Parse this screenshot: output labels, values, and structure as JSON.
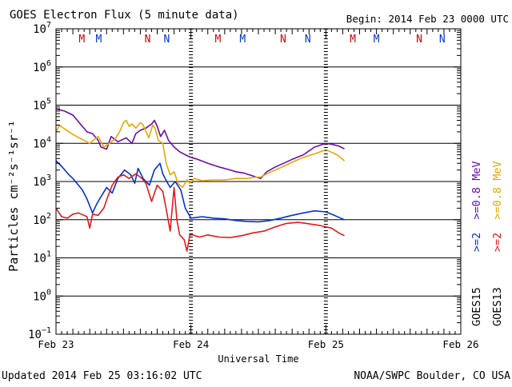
{
  "header": {
    "title": "GOES Electron Flux (5 minute data)",
    "begin": "Begin: 2014 Feb 23 0000 UTC"
  },
  "footer": {
    "updated": "Updated 2014 Feb 25 03:16:02 UTC",
    "credit": "NOAA/SWPC Boulder, CO USA"
  },
  "colors": {
    "goes15_08": "#6a0dad",
    "goes15_2": "#0033cc",
    "goes13_08": "#e8a800",
    "goes13_2": "#e31a1c",
    "marker_M": "#cc0000",
    "marker_N": "#0033cc"
  },
  "chart_data": {
    "type": "line",
    "title": "GOES Electron Flux (5 minute data)",
    "xlabel": "Universal Time",
    "ylabel": "Particles cm⁻²s⁻¹sr⁻¹",
    "y_scale": "log",
    "ylim": [
      0.1,
      10000000
    ],
    "x_unit": "hours since 2014 Feb 23 0000 UTC",
    "xlim": [
      0,
      72
    ],
    "x_ticks": [
      {
        "x": 0,
        "label": "Feb 23"
      },
      {
        "x": 24,
        "label": "Feb 24"
      },
      {
        "x": 48,
        "label": "Feb 25"
      },
      {
        "x": 72,
        "label": "Feb 26"
      }
    ],
    "y_ticks": [
      {
        "exp": -1
      },
      {
        "exp": 0
      },
      {
        "exp": 1
      },
      {
        "exp": 2
      },
      {
        "exp": 3
      },
      {
        "exp": 4
      },
      {
        "exp": 5
      },
      {
        "exp": 6
      },
      {
        "exp": 7
      }
    ],
    "threshold_line": 1000,
    "grid": true,
    "day_markers": [
      24,
      48
    ],
    "local_time_markers": [
      {
        "label": "M",
        "x": 4.6,
        "color": "#cc0000"
      },
      {
        "label": "M",
        "x": 7.6,
        "color": "#0033cc"
      },
      {
        "label": "N",
        "x": 16.3,
        "color": "#cc0000"
      },
      {
        "label": "N",
        "x": 19.7,
        "color": "#0033cc"
      },
      {
        "label": "M",
        "x": 28.8,
        "color": "#cc0000"
      },
      {
        "label": "M",
        "x": 33.2,
        "color": "#0033cc"
      },
      {
        "label": "N",
        "x": 40.4,
        "color": "#cc0000"
      },
      {
        "label": "N",
        "x": 44.8,
        "color": "#0033cc"
      },
      {
        "label": "M",
        "x": 52.8,
        "color": "#cc0000"
      },
      {
        "label": "M",
        "x": 57.0,
        "color": "#0033cc"
      },
      {
        "label": "N",
        "x": 64.6,
        "color": "#cc0000"
      },
      {
        "label": "N",
        "x": 68.7,
        "color": "#0033cc"
      }
    ],
    "legend_right": [
      {
        "text": "GOES15",
        "color": "#000000"
      },
      {
        "text": ">=2",
        "color": "#0033cc"
      },
      {
        "text": ">=0.8",
        "color": "#6a0dad"
      },
      {
        "text": "MeV",
        "color": "#6a0dad"
      },
      {
        "text": "GOES13",
        "color": "#000000"
      },
      {
        "text": ">=2",
        "color": "#e31a1c"
      },
      {
        "text": ">=0.8",
        "color": "#e8a800"
      },
      {
        "text": "MeV",
        "color": "#e8a800"
      }
    ],
    "series": [
      {
        "key": "goes15_08",
        "color": "#6a0dad",
        "points": [
          [
            0,
            80000
          ],
          [
            1.5,
            70000
          ],
          [
            3,
            55000
          ],
          [
            4.5,
            30000
          ],
          [
            5.5,
            20000
          ],
          [
            6.5,
            18000
          ],
          [
            7.5,
            12000
          ],
          [
            8,
            8000
          ],
          [
            9,
            7000
          ],
          [
            9.8,
            15000
          ],
          [
            11,
            11000
          ],
          [
            12.5,
            14000
          ],
          [
            13.5,
            10000
          ],
          [
            14.2,
            18000
          ],
          [
            15,
            22000
          ],
          [
            16,
            25000
          ],
          [
            17,
            32000
          ],
          [
            17.5,
            40000
          ],
          [
            18,
            28000
          ],
          [
            18.6,
            15000
          ],
          [
            19.3,
            22000
          ],
          [
            20,
            12000
          ],
          [
            21,
            8000
          ],
          [
            22,
            6000
          ],
          [
            23,
            5000
          ],
          [
            24,
            4300
          ],
          [
            25,
            3900
          ],
          [
            27,
            3000
          ],
          [
            29,
            2400
          ],
          [
            31,
            2000
          ],
          [
            32,
            1800
          ],
          [
            33.5,
            1650
          ],
          [
            35,
            1400
          ],
          [
            36.4,
            1200
          ],
          [
            37.5,
            1800
          ],
          [
            39,
            2400
          ],
          [
            40.5,
            3000
          ],
          [
            42,
            3800
          ],
          [
            44,
            5000
          ],
          [
            46,
            8000
          ],
          [
            48,
            10000
          ],
          [
            49,
            9500
          ],
          [
            50.3,
            8500
          ],
          [
            51.3,
            7200
          ]
        ]
      },
      {
        "key": "goes13_08",
        "color": "#e8a800",
        "points": [
          [
            0,
            20000
          ],
          [
            0.6,
            30000
          ],
          [
            1.5,
            24000
          ],
          [
            3,
            17000
          ],
          [
            4.5,
            13000
          ],
          [
            6,
            10000
          ],
          [
            7.5,
            15000
          ],
          [
            8.5,
            8000
          ],
          [
            9.5,
            10000
          ],
          [
            10.5,
            13000
          ],
          [
            11.3,
            20000
          ],
          [
            12,
            35000
          ],
          [
            12.5,
            40000
          ],
          [
            13,
            28000
          ],
          [
            13.5,
            32000
          ],
          [
            14.2,
            25000
          ],
          [
            15,
            35000
          ],
          [
            15.5,
            30000
          ],
          [
            16.5,
            14000
          ],
          [
            17.2,
            30000
          ],
          [
            17.6,
            25000
          ],
          [
            18.2,
            12000
          ],
          [
            19,
            10000
          ],
          [
            19.6,
            3000
          ],
          [
            20.3,
            1500
          ],
          [
            21,
            1800
          ],
          [
            21.7,
            900
          ],
          [
            22.5,
            700
          ],
          [
            23.3,
            1100
          ],
          [
            23.8,
            900
          ],
          [
            24.6,
            1200
          ],
          [
            26,
            1050
          ],
          [
            28,
            1100
          ],
          [
            30,
            1100
          ],
          [
            32,
            1200
          ],
          [
            34,
            1200
          ],
          [
            35.5,
            1300
          ],
          [
            36.4,
            1300
          ],
          [
            37.5,
            1600
          ],
          [
            39,
            2000
          ],
          [
            40.5,
            2500
          ],
          [
            42,
            3200
          ],
          [
            44,
            4300
          ],
          [
            46,
            5300
          ],
          [
            48,
            6800
          ],
          [
            50,
            5000
          ],
          [
            51.3,
            3500
          ]
        ]
      },
      {
        "key": "goes15_2",
        "color": "#0033cc",
        "points": [
          [
            0,
            3500
          ],
          [
            1,
            2500
          ],
          [
            2.3,
            1500
          ],
          [
            3,
            1200
          ],
          [
            4,
            800
          ],
          [
            4.7,
            600
          ],
          [
            5.5,
            350
          ],
          [
            6.5,
            150
          ],
          [
            7.2,
            250
          ],
          [
            8,
            400
          ],
          [
            9,
            700
          ],
          [
            10,
            500
          ],
          [
            11,
            1200
          ],
          [
            12.2,
            2000
          ],
          [
            13.3,
            1500
          ],
          [
            14,
            900
          ],
          [
            14.6,
            2200
          ],
          [
            15.5,
            1200
          ],
          [
            16.6,
            800
          ],
          [
            17.5,
            2000
          ],
          [
            18.5,
            3000
          ],
          [
            19,
            1600
          ],
          [
            19.7,
            1000
          ],
          [
            20.3,
            700
          ],
          [
            21.2,
            1000
          ],
          [
            22.2,
            600
          ],
          [
            23,
            200
          ],
          [
            24,
            110
          ],
          [
            26,
            120
          ],
          [
            28,
            110
          ],
          [
            30,
            105
          ],
          [
            32,
            95
          ],
          [
            34,
            90
          ],
          [
            36,
            88
          ],
          [
            38,
            95
          ],
          [
            40,
            110
          ],
          [
            42,
            130
          ],
          [
            44,
            150
          ],
          [
            46,
            170
          ],
          [
            48,
            160
          ],
          [
            49.5,
            130
          ],
          [
            51.3,
            100
          ]
        ]
      },
      {
        "key": "goes13_2",
        "color": "#e31a1c",
        "points": [
          [
            0,
            200
          ],
          [
            1,
            120
          ],
          [
            2,
            110
          ],
          [
            3,
            140
          ],
          [
            4,
            150
          ],
          [
            5,
            130
          ],
          [
            5.5,
            120
          ],
          [
            6,
            60
          ],
          [
            6.5,
            140
          ],
          [
            7.5,
            130
          ],
          [
            8.5,
            200
          ],
          [
            9.2,
            400
          ],
          [
            10,
            800
          ],
          [
            11,
            1300
          ],
          [
            12,
            1500
          ],
          [
            13,
            1200
          ],
          [
            14.2,
            1600
          ],
          [
            15.3,
            1200
          ],
          [
            16,
            900
          ],
          [
            17,
            300
          ],
          [
            18,
            800
          ],
          [
            19,
            550
          ],
          [
            19.7,
            160
          ],
          [
            20.3,
            50
          ],
          [
            21,
            700
          ],
          [
            21.5,
            100
          ],
          [
            22,
            40
          ],
          [
            22.8,
            30
          ],
          [
            23.3,
            15
          ],
          [
            23.8,
            40
          ],
          [
            24.3,
            40
          ],
          [
            25.5,
            35
          ],
          [
            27,
            40
          ],
          [
            29,
            35
          ],
          [
            31,
            34
          ],
          [
            33,
            38
          ],
          [
            35,
            45
          ],
          [
            37,
            50
          ],
          [
            39,
            65
          ],
          [
            41,
            80
          ],
          [
            43,
            85
          ],
          [
            45,
            78
          ],
          [
            47,
            70
          ],
          [
            49,
            60
          ],
          [
            50.3,
            45
          ],
          [
            51.3,
            38
          ]
        ]
      }
    ]
  }
}
